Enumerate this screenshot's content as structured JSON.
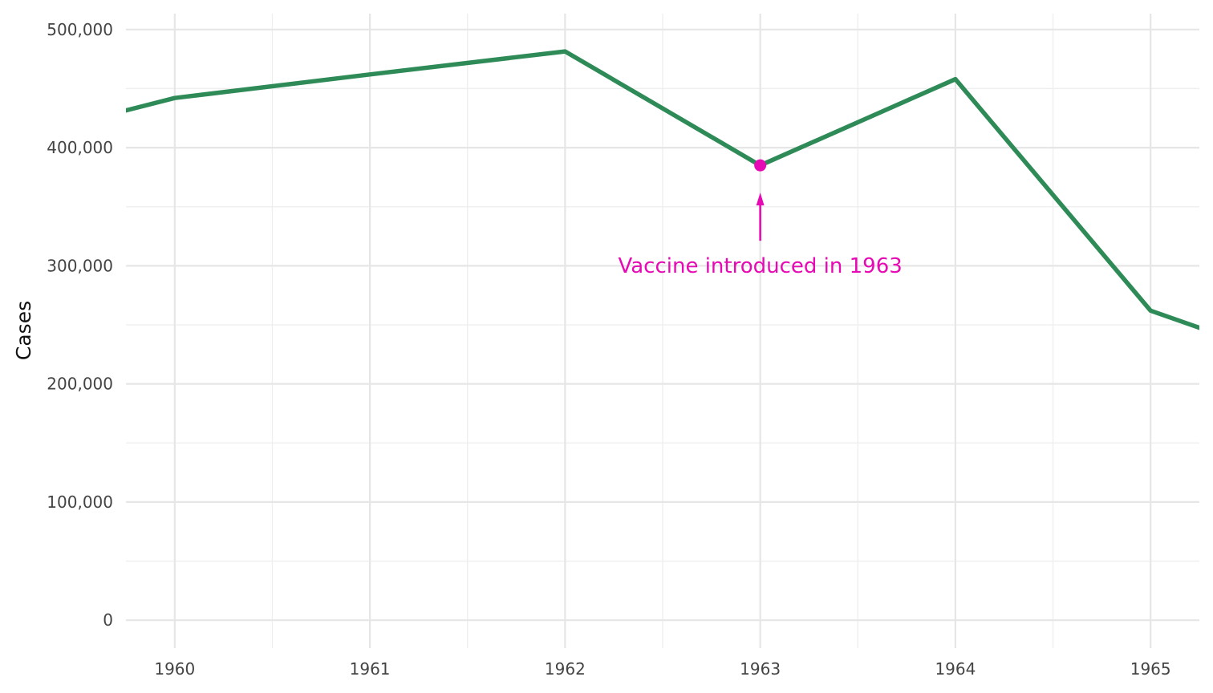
{
  "chart_data": {
    "type": "line",
    "title": "",
    "xlabel": "",
    "ylabel": "Cases",
    "xlim": [
      1959.75,
      1965.25
    ],
    "ylim": [
      -25000,
      525000
    ],
    "x_ticks": [
      1960,
      1961,
      1962,
      1963,
      1964,
      1965
    ],
    "x_tick_labels": [
      "1960",
      "1961",
      "1962",
      "1963",
      "1964",
      "1965"
    ],
    "y_ticks": [
      0,
      100000,
      200000,
      300000,
      400000,
      500000
    ],
    "y_tick_labels": [
      "0",
      "100,000",
      "200,000",
      "300,000",
      "400,000",
      "500,000"
    ],
    "grid": true,
    "series": [
      {
        "color": "#2e8b57",
        "x": [
          1959,
          1960,
          1961,
          1962,
          1963,
          1964,
          1965,
          1966
        ],
        "y": [
          400000,
          442000,
          462000,
          481500,
          385000,
          458000,
          262000,
          204000
        ]
      }
    ],
    "highlight_point": {
      "x": 1963,
      "y": 385000,
      "color": "#e60ab4"
    },
    "annotation": {
      "text": "Vaccine introduced in 1963",
      "color": "#e60ab4"
    }
  }
}
